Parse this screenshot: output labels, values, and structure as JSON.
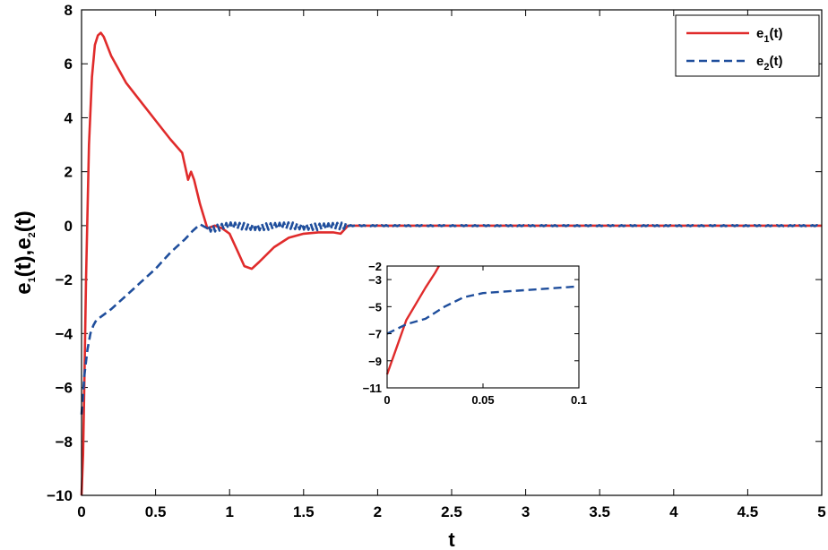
{
  "chart_data": [
    {
      "type": "line",
      "xlabel": "t",
      "ylabel_parts": [
        "e",
        "1",
        "(t),e",
        "2",
        "(t)"
      ],
      "xlim": [
        0,
        5
      ],
      "ylim": [
        -10,
        8
      ],
      "x_ticks": [
        0,
        0.5,
        1,
        1.5,
        2,
        2.5,
        3,
        3.5,
        4,
        4.5,
        5
      ],
      "x_tick_labels": [
        "0",
        "0.5",
        "1",
        "1.5",
        "2",
        "2.5",
        "3",
        "3.5",
        "4",
        "4.5",
        "5"
      ],
      "y_ticks": [
        -10,
        -8,
        -6,
        -4,
        -2,
        0,
        2,
        4,
        6,
        8
      ],
      "y_tick_labels": [
        "−10",
        "−8",
        "−6",
        "−4",
        "−2",
        "0",
        "2",
        "4",
        "6",
        "8"
      ],
      "grid": false,
      "legend_position": "top-right",
      "series": [
        {
          "name": "e1(t)",
          "label_parts": [
            "e",
            "1",
            "(t)"
          ],
          "color": "#e02b2b",
          "dash": "solid",
          "x": [
            0,
            0.01,
            0.02,
            0.03,
            0.05,
            0.07,
            0.09,
            0.11,
            0.13,
            0.15,
            0.2,
            0.3,
            0.4,
            0.5,
            0.6,
            0.68,
            0.7,
            0.72,
            0.74,
            0.76,
            0.8,
            0.85,
            0.9,
            0.95,
            1.0,
            1.05,
            1.1,
            1.15,
            1.2,
            1.3,
            1.4,
            1.5,
            1.6,
            1.7,
            1.75,
            1.8,
            1.85,
            2.0,
            5.0
          ],
          "y": [
            -10,
            -8.5,
            -5.5,
            -2.0,
            3.0,
            5.5,
            6.7,
            7.05,
            7.15,
            7.0,
            6.3,
            5.3,
            4.6,
            3.9,
            3.2,
            2.7,
            2.2,
            1.7,
            2.0,
            1.7,
            0.8,
            -0.1,
            0.0,
            -0.1,
            -0.3,
            -0.9,
            -1.5,
            -1.6,
            -1.35,
            -0.8,
            -0.45,
            -0.3,
            -0.25,
            -0.25,
            -0.3,
            0.0,
            0.0,
            0.0,
            0.0
          ]
        },
        {
          "name": "e2(t)",
          "label_parts": [
            "e",
            "2",
            "(t)"
          ],
          "color": "#1f4e9c",
          "dash": "dashed",
          "x": [
            0,
            0.02,
            0.04,
            0.06,
            0.08,
            0.1,
            0.15,
            0.2,
            0.3,
            0.4,
            0.5,
            0.6,
            0.7,
            0.75,
            0.8,
            0.85,
            0.9,
            1.0,
            1.2,
            1.4,
            1.6,
            1.8,
            2.0,
            5.0
          ],
          "y": [
            -7.0,
            -5.5,
            -4.6,
            -4.0,
            -3.7,
            -3.5,
            -3.3,
            -3.1,
            -2.6,
            -2.1,
            -1.6,
            -1.0,
            -0.5,
            -0.2,
            0.05,
            -0.1,
            -0.1,
            0.0,
            -0.05,
            0.0,
            -0.05,
            0.0,
            0.0,
            0.0
          ],
          "oscillation": {
            "start": 0.85,
            "end": 5.0,
            "period": 0.03,
            "amplitude": 0.12,
            "decay_from": 1.8,
            "late_amplitude": 0.02
          }
        }
      ]
    },
    {
      "type": "line",
      "role": "inset",
      "xlim": [
        0,
        0.1
      ],
      "ylim": [
        -11,
        -2
      ],
      "x_ticks": [
        0,
        0.05,
        0.1
      ],
      "x_tick_labels": [
        "0",
        "0.05",
        "0.1"
      ],
      "y_ticks": [
        -11,
        -9,
        -7,
        -5,
        -3,
        -2
      ],
      "y_tick_labels": [
        "−11",
        "−9",
        "−7",
        "−5",
        "−3",
        "−2"
      ],
      "series": [
        {
          "name": "e1(t)",
          "color": "#e02b2b",
          "dash": "solid",
          "x": [
            0,
            0.005,
            0.01,
            0.015,
            0.02,
            0.025,
            0.027
          ],
          "y": [
            -10.0,
            -8.0,
            -6.0,
            -4.8,
            -3.6,
            -2.5,
            -2.0
          ]
        },
        {
          "name": "e2(t)",
          "color": "#1f4e9c",
          "dash": "dashed",
          "x": [
            0,
            0.01,
            0.02,
            0.03,
            0.04,
            0.05,
            0.06,
            0.08,
            0.1
          ],
          "y": [
            -7.0,
            -6.3,
            -5.9,
            -5.0,
            -4.3,
            -4.0,
            -3.9,
            -3.7,
            -3.5
          ]
        }
      ]
    }
  ]
}
